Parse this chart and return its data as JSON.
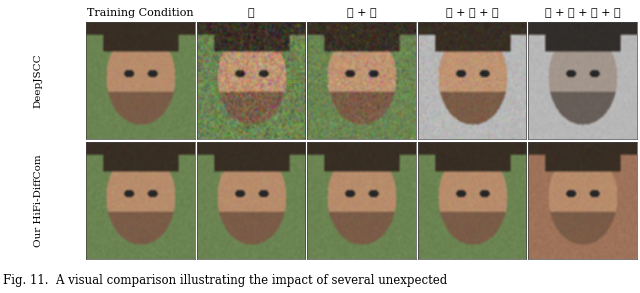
{
  "col_labels": [
    "Training Condition",
    "①",
    "① + ②",
    "① + ② + ③",
    "① + ② + ③ + ④"
  ],
  "row_labels": [
    "DeepJSCC",
    "Our HiFi-DiffCom"
  ],
  "caption": "Fig. 11.  A visual comparison illustrating the impact of several unexpected",
  "bg_color": "#ffffff",
  "label_color": "#000000",
  "grid_rows": 2,
  "grid_cols": 5,
  "fig_width": 6.4,
  "fig_height": 2.93,
  "caption_fontsize": 8.5,
  "col_label_fontsize": 8.0,
  "row_label_fontsize": 7.5,
  "cell_avg_colors": [
    [
      "#8a7a68",
      "#9a8878",
      "#9a8878",
      "#9a9090",
      "#c8c8c8"
    ],
    [
      "#8a7a68",
      "#8a7a68",
      "#8a7a68",
      "#8a7a68",
      "#9a6040"
    ]
  ]
}
